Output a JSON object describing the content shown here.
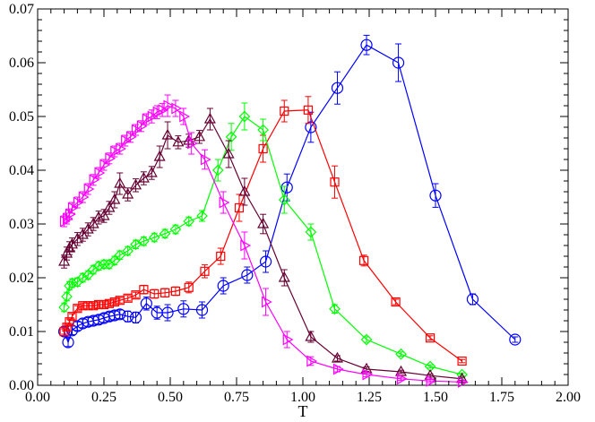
{
  "chart_data": {
    "type": "line",
    "title": "",
    "xlabel": "T",
    "ylabel": "",
    "xlim": [
      0.0,
      2.0
    ],
    "ylim": [
      0.0,
      0.07
    ],
    "xticks": [
      0.0,
      0.25,
      0.5,
      0.75,
      1.0,
      1.25,
      1.5,
      1.75,
      2.0
    ],
    "xtick_labels": [
      "0.00",
      "0.25",
      "0.50",
      "0.75",
      "1.00",
      "1.25",
      "1.50",
      "1.75",
      "2.00"
    ],
    "yticks": [
      0.0,
      0.01,
      0.02,
      0.03,
      0.04,
      0.05,
      0.06,
      0.07
    ],
    "ytick_labels": [
      "0.00",
      "0.01",
      "0.02",
      "0.03",
      "0.04",
      "0.05",
      "0.06",
      "0.07"
    ],
    "grid": false,
    "series": [
      {
        "name": "circles",
        "color": "#0000ff",
        "marker": "circle",
        "x": [
          0.1,
          0.115,
          0.13,
          0.15,
          0.17,
          0.19,
          0.21,
          0.23,
          0.25,
          0.27,
          0.29,
          0.31,
          0.34,
          0.37,
          0.41,
          0.45,
          0.49,
          0.55,
          0.62,
          0.7,
          0.79,
          0.86,
          0.94,
          1.03,
          1.13,
          1.24,
          1.36,
          1.5,
          1.64,
          1.8
        ],
        "y": [
          0.01,
          0.008,
          0.0102,
          0.011,
          0.0115,
          0.0118,
          0.012,
          0.0122,
          0.0125,
          0.0128,
          0.013,
          0.0132,
          0.0128,
          0.0126,
          0.0152,
          0.0135,
          0.0135,
          0.0142,
          0.014,
          0.0185,
          0.0205,
          0.023,
          0.0368,
          0.048,
          0.0553,
          0.0633,
          0.06,
          0.0353,
          0.016,
          0.0085
        ],
        "err": [
          0.0008,
          0.0008,
          0.0008,
          0.0008,
          0.0008,
          0.0008,
          0.0008,
          0.0008,
          0.0008,
          0.0008,
          0.0008,
          0.0008,
          0.001,
          0.001,
          0.0012,
          0.0012,
          0.0015,
          0.0015,
          0.0015,
          0.0015,
          0.0015,
          0.002,
          0.0025,
          0.0028,
          0.003,
          0.0018,
          0.0035,
          0.0022,
          0.001,
          0.0005
        ]
      },
      {
        "name": "squares",
        "color": "#ff0000",
        "marker": "square",
        "x": [
          0.1,
          0.11,
          0.12,
          0.13,
          0.15,
          0.17,
          0.19,
          0.21,
          0.23,
          0.25,
          0.27,
          0.29,
          0.31,
          0.34,
          0.37,
          0.4,
          0.44,
          0.48,
          0.52,
          0.57,
          0.63,
          0.69,
          0.76,
          0.85,
          0.93,
          1.02,
          1.12,
          1.23,
          1.35,
          1.48,
          1.6
        ],
        "y": [
          0.01,
          0.0108,
          0.0118,
          0.0128,
          0.0143,
          0.0148,
          0.0148,
          0.0148,
          0.015,
          0.015,
          0.0152,
          0.0155,
          0.0158,
          0.0162,
          0.0168,
          0.0178,
          0.017,
          0.0172,
          0.0175,
          0.0182,
          0.0212,
          0.024,
          0.033,
          0.044,
          0.051,
          0.0512,
          0.0378,
          0.0232,
          0.0155,
          0.0088,
          0.0045
        ],
        "err": [
          0.0005,
          0.0005,
          0.0005,
          0.0005,
          0.0005,
          0.0005,
          0.0005,
          0.0005,
          0.0005,
          0.0005,
          0.0005,
          0.0005,
          0.0005,
          0.0005,
          0.0005,
          0.0008,
          0.0008,
          0.0008,
          0.0008,
          0.001,
          0.0012,
          0.0015,
          0.0025,
          0.0025,
          0.002,
          0.0025,
          0.003,
          0.001,
          0.0005,
          0.0004,
          0.0003
        ]
      },
      {
        "name": "diamonds",
        "color": "#00ff00",
        "marker": "diamond",
        "x": [
          0.1,
          0.11,
          0.12,
          0.13,
          0.15,
          0.17,
          0.19,
          0.21,
          0.23,
          0.25,
          0.27,
          0.29,
          0.31,
          0.34,
          0.37,
          0.4,
          0.44,
          0.48,
          0.52,
          0.57,
          0.62,
          0.68,
          0.73,
          0.78,
          0.85,
          0.93,
          1.03,
          1.12,
          1.24,
          1.37,
          1.48,
          1.6
        ],
        "y": [
          0.0145,
          0.0165,
          0.0185,
          0.019,
          0.0192,
          0.02,
          0.0205,
          0.0215,
          0.0222,
          0.0225,
          0.0225,
          0.0232,
          0.0242,
          0.025,
          0.0262,
          0.0268,
          0.0275,
          0.0282,
          0.029,
          0.0305,
          0.0315,
          0.04,
          0.0462,
          0.05,
          0.0475,
          0.0345,
          0.0285,
          0.0142,
          0.0085,
          0.0058,
          0.0035,
          0.002
        ],
        "err": [
          0.0008,
          0.0008,
          0.0008,
          0.0008,
          0.0008,
          0.0008,
          0.0008,
          0.0008,
          0.0008,
          0.0008,
          0.0008,
          0.0008,
          0.0008,
          0.0008,
          0.0008,
          0.0008,
          0.0008,
          0.0008,
          0.0008,
          0.0008,
          0.001,
          0.002,
          0.0025,
          0.0025,
          0.002,
          0.0025,
          0.0015,
          0.0008,
          0.0005,
          0.0004,
          0.0003,
          0.0003
        ]
      },
      {
        "name": "triangles-up",
        "color": "#660033",
        "marker": "triangle-up",
        "x": [
          0.1,
          0.11,
          0.12,
          0.13,
          0.15,
          0.17,
          0.19,
          0.21,
          0.23,
          0.25,
          0.27,
          0.29,
          0.31,
          0.34,
          0.37,
          0.4,
          0.43,
          0.46,
          0.49,
          0.53,
          0.57,
          0.61,
          0.65,
          0.72,
          0.78,
          0.85,
          0.93,
          1.03,
          1.13,
          1.24,
          1.37,
          1.48,
          1.6
        ],
        "y": [
          0.023,
          0.0245,
          0.0255,
          0.0262,
          0.0272,
          0.028,
          0.029,
          0.03,
          0.0312,
          0.0315,
          0.033,
          0.0345,
          0.0375,
          0.0355,
          0.0372,
          0.0385,
          0.0395,
          0.0425,
          0.0465,
          0.0452,
          0.0455,
          0.0462,
          0.0495,
          0.043,
          0.036,
          0.03,
          0.02,
          0.009,
          0.005,
          0.003,
          0.0025,
          0.0018,
          0.0012
        ],
        "err": [
          0.0012,
          0.0012,
          0.0012,
          0.0012,
          0.0012,
          0.0012,
          0.0012,
          0.0012,
          0.0012,
          0.0012,
          0.0012,
          0.0015,
          0.002,
          0.0012,
          0.0012,
          0.0012,
          0.0012,
          0.002,
          0.0025,
          0.0012,
          0.0012,
          0.0012,
          0.002,
          0.0025,
          0.0025,
          0.0018,
          0.0015,
          0.001,
          0.0005,
          0.0004,
          0.0003,
          0.0003,
          0.0003
        ]
      },
      {
        "name": "triangles-right",
        "color": "#ff00ff",
        "marker": "triangle-right",
        "x": [
          0.1,
          0.11,
          0.12,
          0.13,
          0.15,
          0.17,
          0.19,
          0.21,
          0.23,
          0.25,
          0.27,
          0.29,
          0.31,
          0.33,
          0.35,
          0.37,
          0.39,
          0.41,
          0.43,
          0.45,
          0.47,
          0.49,
          0.52,
          0.55,
          0.58,
          0.63,
          0.7,
          0.78,
          0.86,
          0.94,
          1.03,
          1.13,
          1.24,
          1.37,
          1.48,
          1.6
        ],
        "y": [
          0.0305,
          0.031,
          0.0318,
          0.033,
          0.034,
          0.035,
          0.0365,
          0.0382,
          0.0395,
          0.041,
          0.0422,
          0.0435,
          0.044,
          0.0455,
          0.0462,
          0.0475,
          0.0482,
          0.0495,
          0.05,
          0.0508,
          0.0512,
          0.052,
          0.0515,
          0.05,
          0.045,
          0.042,
          0.034,
          0.026,
          0.0155,
          0.0085,
          0.0045,
          0.003,
          0.002,
          0.0012,
          0.0008,
          0.0006
        ],
        "err": [
          0.001,
          0.001,
          0.001,
          0.001,
          0.001,
          0.001,
          0.001,
          0.001,
          0.001,
          0.001,
          0.001,
          0.001,
          0.001,
          0.001,
          0.001,
          0.001,
          0.001,
          0.001,
          0.0012,
          0.0012,
          0.0012,
          0.002,
          0.0015,
          0.0015,
          0.002,
          0.0018,
          0.002,
          0.0025,
          0.0025,
          0.0015,
          0.0008,
          0.0005,
          0.0004,
          0.0003,
          0.0003,
          0.0002
        ]
      }
    ]
  }
}
